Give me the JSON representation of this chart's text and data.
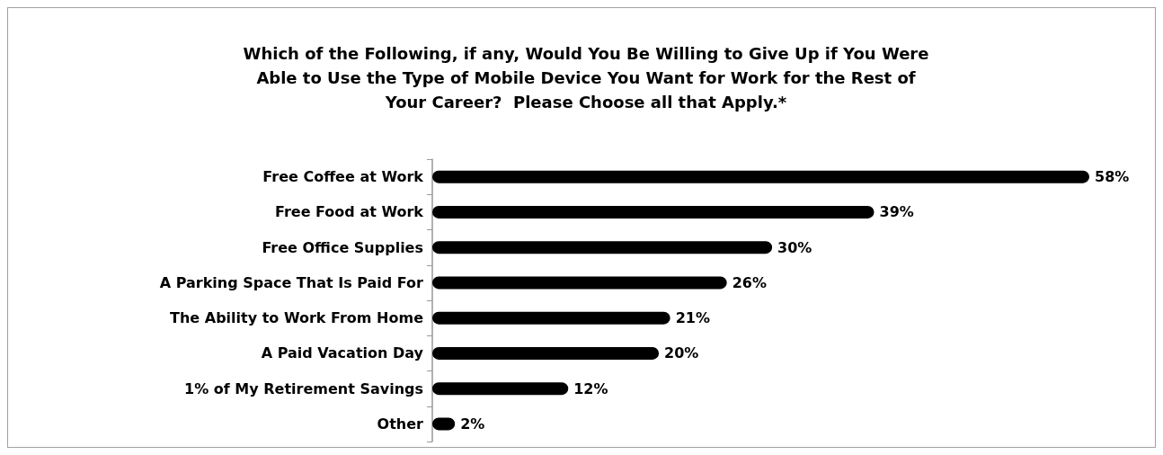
{
  "chart_data": {
    "type": "bar",
    "orientation": "horizontal",
    "title": "Which of the Following, if any, Would You Be Willing to Give Up if You Were\nAble to Use the Type of Mobile Device You Want for Work for the Rest of\nYour Career?  Please Choose all that Apply.*",
    "categories": [
      "Free Coffee at Work",
      "Free Food at Work",
      "Free Office Supplies",
      "A Parking Space That Is Paid For",
      "The Ability to Work From Home",
      "A Paid Vacation Day",
      "1% of My Retirement Savings",
      "Other"
    ],
    "values": [
      58,
      39,
      30,
      26,
      21,
      20,
      12,
      2
    ],
    "value_labels": [
      "58%",
      "39%",
      "30%",
      "26%",
      "21%",
      "20%",
      "12%",
      "2%"
    ],
    "color": "#000000"
  }
}
